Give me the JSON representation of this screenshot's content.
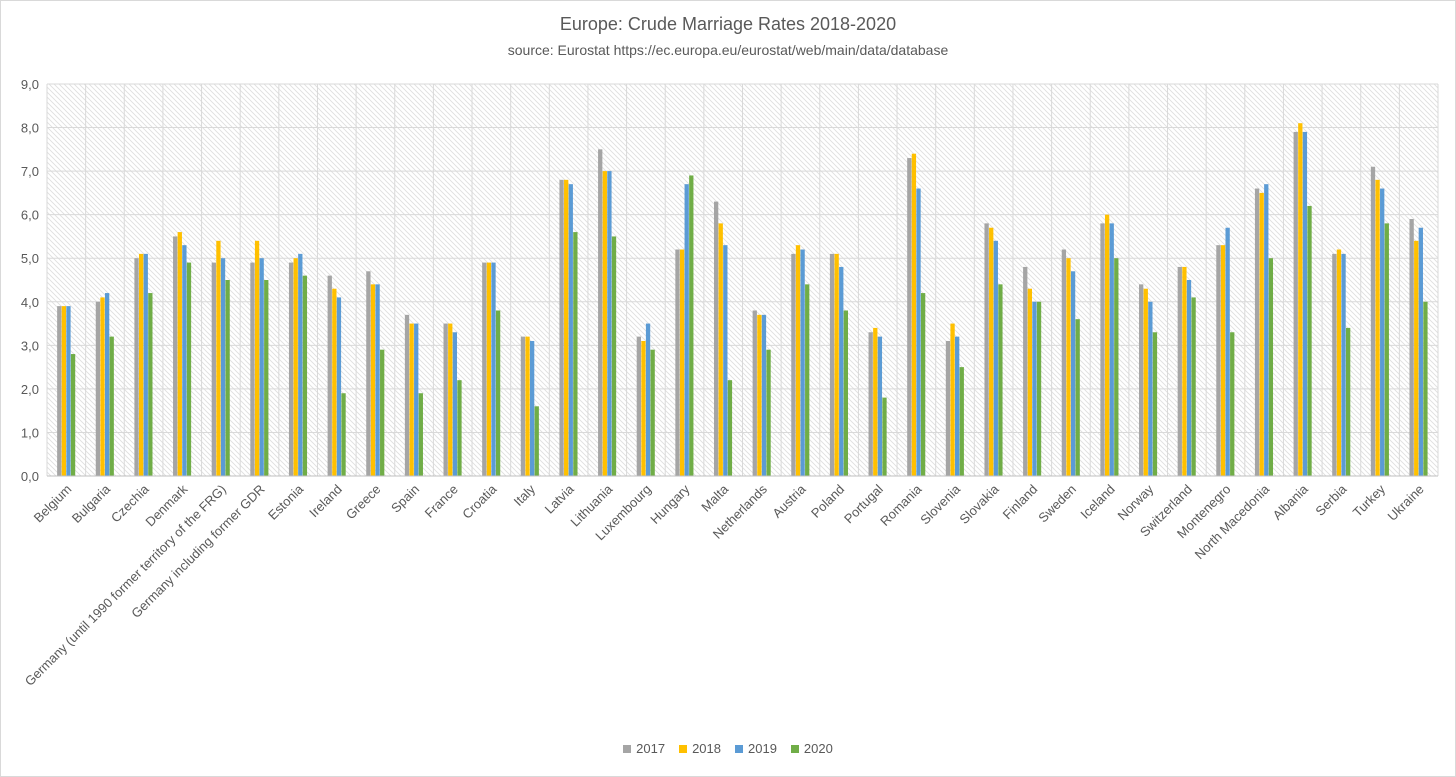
{
  "chart_data": {
    "type": "bar",
    "title": "Europe: Crude Marriage Rates 2018-2020",
    "subtitle": "source: Eurostat https://ec.europa.eu/eurostat/web/main/data/database",
    "ylim": [
      0,
      9
    ],
    "yticks": [
      "0,0",
      "1,0",
      "2,0",
      "3,0",
      "4,0",
      "5,0",
      "6,0",
      "7,0",
      "8,0",
      "9,0"
    ],
    "grid": true,
    "legend_position": "bottom",
    "categories": [
      "Belgium",
      "Bulgaria",
      "Czechia",
      "Denmark",
      "Germany (until 1990 former territory of the FRG)",
      "Germany including former GDR",
      "Estonia",
      "Ireland",
      "Greece",
      "Spain",
      "France",
      "Croatia",
      "Italy",
      "Latvia",
      "Lithuania",
      "Luxembourg",
      "Hungary",
      "Malta",
      "Netherlands",
      "Austria",
      "Poland",
      "Portugal",
      "Romania",
      "Slovenia",
      "Slovakia",
      "Finland",
      "Sweden",
      "Iceland",
      "Norway",
      "Switzerland",
      "Montenegro",
      "North Macedonia",
      "Albania",
      "Serbia",
      "Turkey",
      "Ukraine"
    ],
    "series": [
      {
        "name": "2017",
        "color": "#a5a5a5",
        "values": [
          3.9,
          4.0,
          5.0,
          5.5,
          4.9,
          4.9,
          4.9,
          4.6,
          4.7,
          3.7,
          3.5,
          4.9,
          3.2,
          6.8,
          7.5,
          3.2,
          5.2,
          6.3,
          3.8,
          5.1,
          5.1,
          3.3,
          7.3,
          3.1,
          5.8,
          4.8,
          5.2,
          5.8,
          4.4,
          4.8,
          5.3,
          6.6,
          7.9,
          5.1,
          7.1,
          5.9
        ]
      },
      {
        "name": "2018",
        "color": "#ffc000",
        "values": [
          3.9,
          4.1,
          5.1,
          5.6,
          5.4,
          5.4,
          5.0,
          4.3,
          4.4,
          3.5,
          3.5,
          4.9,
          3.2,
          6.8,
          7.0,
          3.1,
          5.2,
          5.8,
          3.7,
          5.3,
          5.1,
          3.4,
          7.4,
          3.5,
          5.7,
          4.3,
          5.0,
          6.0,
          4.3,
          4.8,
          5.3,
          6.5,
          8.1,
          5.2,
          6.8,
          5.4
        ]
      },
      {
        "name": "2019",
        "color": "#5b9bd5",
        "values": [
          3.9,
          4.2,
          5.1,
          5.3,
          5.0,
          5.0,
          5.1,
          4.1,
          4.4,
          3.5,
          3.3,
          4.9,
          3.1,
          6.7,
          7.0,
          3.5,
          6.7,
          5.3,
          3.7,
          5.2,
          4.8,
          3.2,
          6.6,
          3.2,
          5.4,
          4.0,
          4.7,
          5.8,
          4.0,
          4.5,
          5.7,
          6.7,
          7.9,
          5.1,
          6.6,
          5.7
        ]
      },
      {
        "name": "2020",
        "color": "#70ad47",
        "values": [
          2.8,
          3.2,
          4.2,
          4.9,
          4.5,
          4.5,
          4.6,
          1.9,
          2.9,
          1.9,
          2.2,
          3.8,
          1.6,
          5.6,
          5.5,
          2.9,
          6.9,
          2.2,
          2.9,
          4.4,
          3.8,
          1.8,
          4.2,
          2.5,
          4.4,
          4.0,
          3.6,
          5.0,
          3.3,
          4.1,
          3.3,
          5.0,
          6.2,
          3.4,
          5.8,
          4.0
        ]
      }
    ]
  }
}
